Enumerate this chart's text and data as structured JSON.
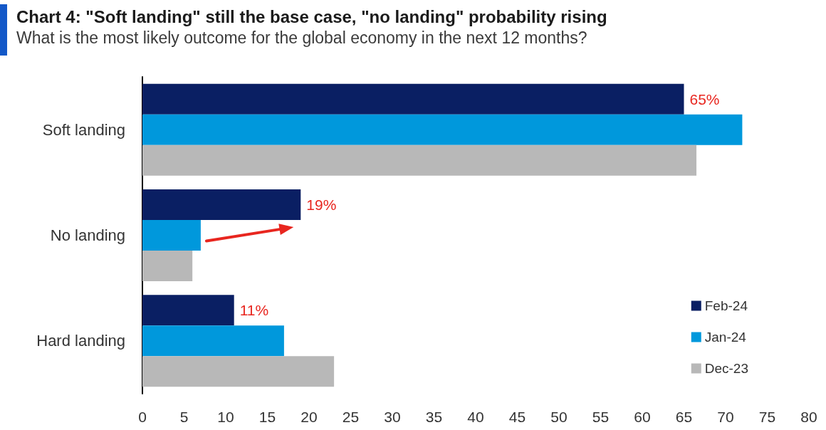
{
  "chart_data": {
    "type": "bar",
    "orientation": "horizontal",
    "title": "Chart 4: \"Soft landing\" still the base case, \"no landing\" probability rising",
    "subtitle": "What is the most likely outcome for the global economy in the next 12 months?",
    "categories": [
      "Soft landing",
      "No landing",
      "Hard landing"
    ],
    "series": [
      {
        "name": "Feb-24",
        "color": "#0a1f63",
        "values": [
          65,
          19,
          11
        ],
        "value_labels": [
          "65%",
          "19%",
          "11%"
        ]
      },
      {
        "name": "Jan-24",
        "color": "#0098dc",
        "values": [
          72,
          7,
          17
        ]
      },
      {
        "name": "Dec-23",
        "color": "#b8b8b8",
        "values": [
          66.5,
          6,
          23
        ]
      }
    ],
    "xlim": [
      0,
      80
    ],
    "xticks": [
      0,
      5,
      10,
      15,
      20,
      25,
      30,
      35,
      40,
      45,
      50,
      55,
      60,
      65,
      70,
      75,
      80
    ],
    "grid": false,
    "legend": "bottom right"
  }
}
